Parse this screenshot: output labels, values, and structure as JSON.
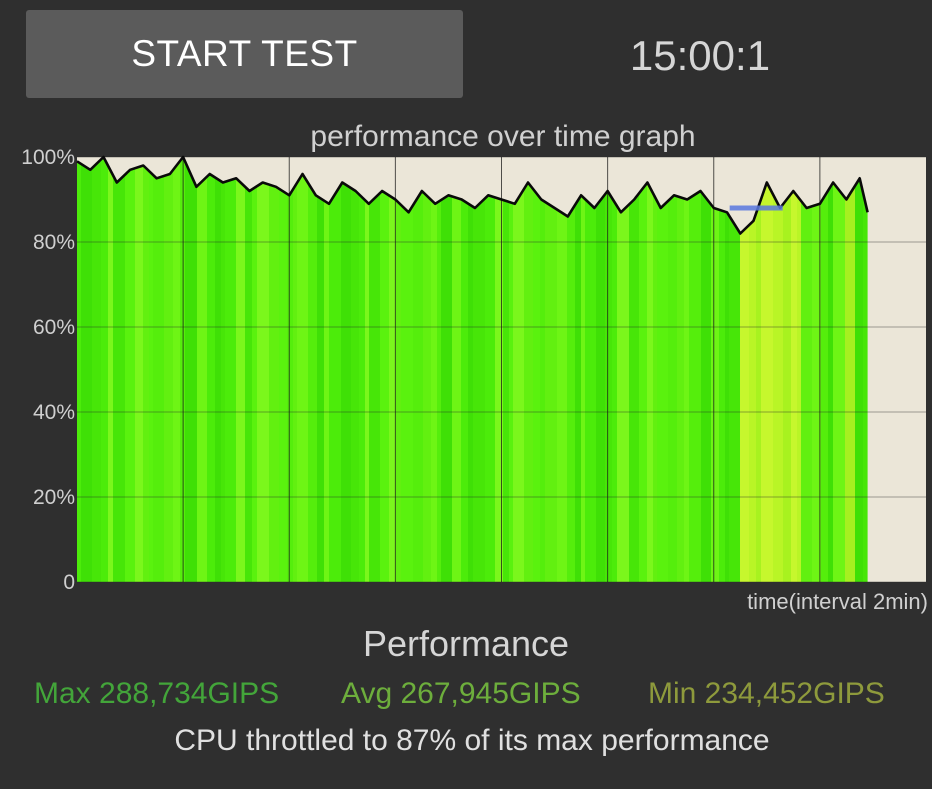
{
  "header": {
    "start_button_label": "START TEST",
    "timer": "15:00:1"
  },
  "graph": {
    "title": "performance over time graph",
    "x_label": "time(interval 2min)",
    "y_ticks": [
      "100%",
      "80%",
      "60%",
      "40%",
      "20%",
      "0"
    ]
  },
  "chart_data": {
    "type": "area",
    "title": "performance over time graph",
    "xlabel": "time(interval 2min)",
    "ylabel": "",
    "ylim": [
      0,
      100
    ],
    "xlim": [
      0,
      16
    ],
    "grid": true,
    "x": [
      0,
      0.25,
      0.5,
      0.75,
      1,
      1.25,
      1.5,
      1.75,
      2,
      2.25,
      2.5,
      2.75,
      3,
      3.25,
      3.5,
      3.75,
      4,
      4.25,
      4.5,
      4.75,
      5,
      5.25,
      5.5,
      5.75,
      6,
      6.25,
      6.5,
      6.75,
      7,
      7.25,
      7.5,
      7.75,
      8,
      8.25,
      8.5,
      8.75,
      9,
      9.25,
      9.5,
      9.75,
      10,
      10.25,
      10.5,
      10.75,
      11,
      11.25,
      11.5,
      11.75,
      12,
      12.25,
      12.5,
      12.75,
      13,
      13.25,
      13.5,
      13.75,
      14,
      14.25,
      14.5,
      14.75,
      14.9
    ],
    "series": [
      {
        "values": [
          99,
          97,
          100,
          94,
          97,
          98,
          95,
          96,
          100,
          93,
          96,
          94,
          95,
          92,
          94,
          93,
          91,
          96,
          91,
          89,
          94,
          92,
          89,
          92,
          90,
          87,
          92,
          89,
          91,
          90,
          88,
          91,
          90,
          89,
          94,
          90,
          88,
          86,
          91,
          88,
          92,
          87,
          90,
          94,
          88,
          91,
          90,
          92,
          88,
          87,
          82,
          85,
          94,
          88,
          92,
          88,
          89,
          94,
          90,
          95,
          87
        ]
      }
    ],
    "throttle_marker": {
      "x_start": 12.3,
      "x_end": 13.3,
      "value": 88
    }
  },
  "performance": {
    "title": "Performance",
    "max": "Max 288,734GIPS",
    "avg": "Avg 267,945GIPS",
    "min": "Min 234,452GIPS",
    "throttle_text": "CPU throttled to 87% of its max performance"
  },
  "colors": {
    "background": "#2f2f2f",
    "button": "#5b5b5b",
    "plot_background": "#ebe6d8",
    "max_color": "#43a53a",
    "avg_color": "#6dae3c",
    "min_color": "#8e9a3c",
    "marker": "#5a78e0"
  }
}
